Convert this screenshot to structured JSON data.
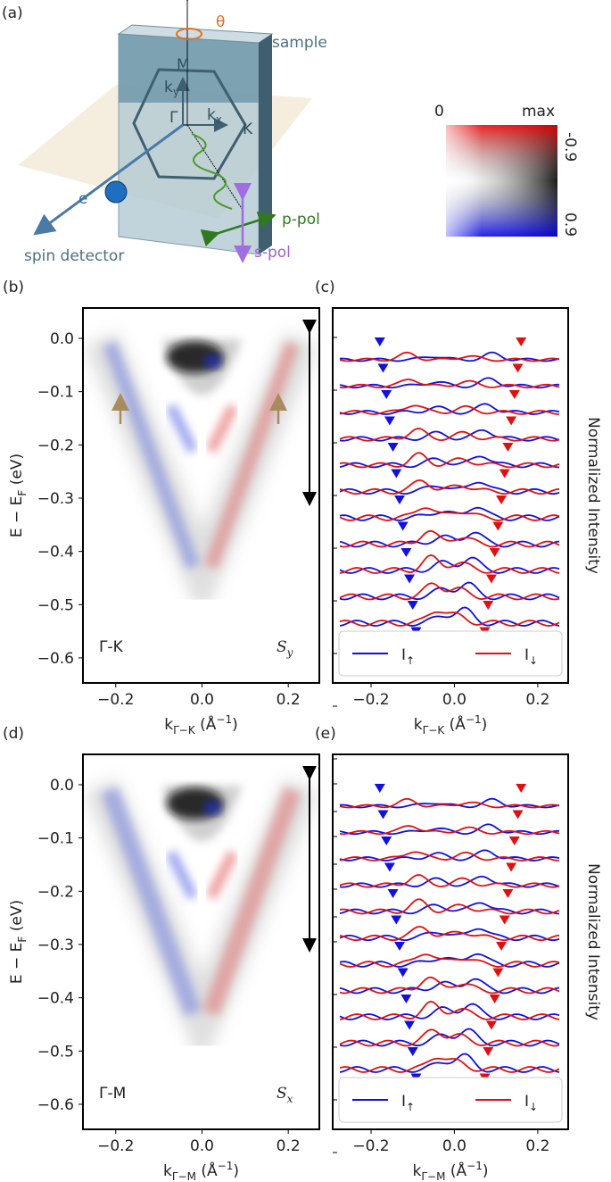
{
  "panel_a": {
    "label": "(a)",
    "theta": "θ",
    "sample": "sample",
    "M": "M",
    "ky": {
      "main": "k",
      "sub": "y"
    },
    "gamma": "Γ",
    "kx": {
      "main": "k",
      "sub": "x"
    },
    "K": "K",
    "electron": {
      "main": "e",
      "sup": "-"
    },
    "spin_detector": "spin detector",
    "p_pol": "p-pol",
    "s_pol": "s-pol",
    "colorbar": {
      "zero": "0",
      "max": "max",
      "neg": "-0.9",
      "pos": "0.9"
    }
  },
  "panels": [
    {
      "label": "(b)",
      "kind": "map",
      "region": "Γ-K",
      "spin": {
        "main": "S",
        "sub": "y"
      },
      "ylabel": {
        "main": "E − E",
        "sub": "F",
        "rest": " (eV)"
      },
      "xlabel": {
        "main": "k",
        "sub": "Γ−K",
        "rest": " (Å",
        "sup": "−1",
        "end": ")"
      },
      "xlim": [
        -0.276,
        0.272
      ],
      "ylim": [
        -0.647,
        0.057
      ],
      "xticks": [
        {
          "value": -0.2,
          "label": "−0.2"
        },
        {
          "value": 0,
          "label": "0.0"
        },
        {
          "value": 0.2,
          "label": "0.2"
        }
      ],
      "yticks": [
        {
          "value": 0,
          "label": "0.0"
        },
        {
          "value": -0.1,
          "label": "−0.1"
        },
        {
          "value": -0.2,
          "label": "−0.2"
        },
        {
          "value": -0.3,
          "label": "−0.3"
        },
        {
          "value": -0.4,
          "label": "−0.4"
        },
        {
          "value": -0.5,
          "label": "−0.5"
        },
        {
          "value": -0.6,
          "label": "−0.6"
        }
      ]
    },
    {
      "label": "(c)",
      "kind": "edc",
      "ylabel": "Normalized Intensity",
      "legend": [
        {
          "main": "I",
          "sub": "↑"
        },
        {
          "main": "I",
          "sub": "↓"
        }
      ],
      "xlabel": {
        "main": "k",
        "sub": "Γ−K",
        "rest": " (Å",
        "sup": "−1",
        "end": ")"
      },
      "xlim": [
        -0.292,
        0.273
      ],
      "xticks": [
        {
          "value": -0.2,
          "label": "−0.2"
        },
        {
          "value": 0,
          "label": "0.0"
        },
        {
          "value": 0.2,
          "label": "0.2"
        }
      ]
    },
    {
      "label": "(d)",
      "kind": "map",
      "region": "Γ-M",
      "spin": {
        "main": "S",
        "sub": "x"
      },
      "ylabel": {
        "main": "E − E",
        "sub": "F",
        "rest": " (eV)"
      },
      "xlabel": {
        "main": "k",
        "sub": "Γ−M",
        "rest": " (Å",
        "sup": "−1",
        "end": ")"
      },
      "xlim": [
        -0.276,
        0.272
      ],
      "ylim": [
        -0.647,
        0.057
      ],
      "xticks": [
        {
          "value": -0.2,
          "label": "−0.2"
        },
        {
          "value": 0,
          "label": "0.0"
        },
        {
          "value": 0.2,
          "label": "0.2"
        }
      ],
      "yticks": [
        {
          "value": 0,
          "label": "0.0"
        },
        {
          "value": -0.1,
          "label": "−0.1"
        },
        {
          "value": -0.2,
          "label": "−0.2"
        },
        {
          "value": -0.3,
          "label": "−0.3"
        },
        {
          "value": -0.4,
          "label": "−0.4"
        },
        {
          "value": -0.5,
          "label": "−0.5"
        },
        {
          "value": -0.6,
          "label": "−0.6"
        }
      ]
    },
    {
      "label": "(e)",
      "kind": "edc",
      "ylabel": "Normalized Intensity",
      "legend": [
        {
          "main": "I",
          "sub": "↑"
        },
        {
          "main": "I",
          "sub": "↓"
        }
      ],
      "xlabel": {
        "main": "k",
        "sub": "Γ−M",
        "rest": " (Å",
        "sup": "−1",
        "end": ")"
      },
      "xlim": [
        -0.292,
        0.273
      ],
      "xticks": [
        {
          "value": -0.2,
          "label": "−0.2"
        },
        {
          "value": 0,
          "label": "0.0"
        },
        {
          "value": 0.2,
          "label": "0.2"
        }
      ]
    }
  ]
}
